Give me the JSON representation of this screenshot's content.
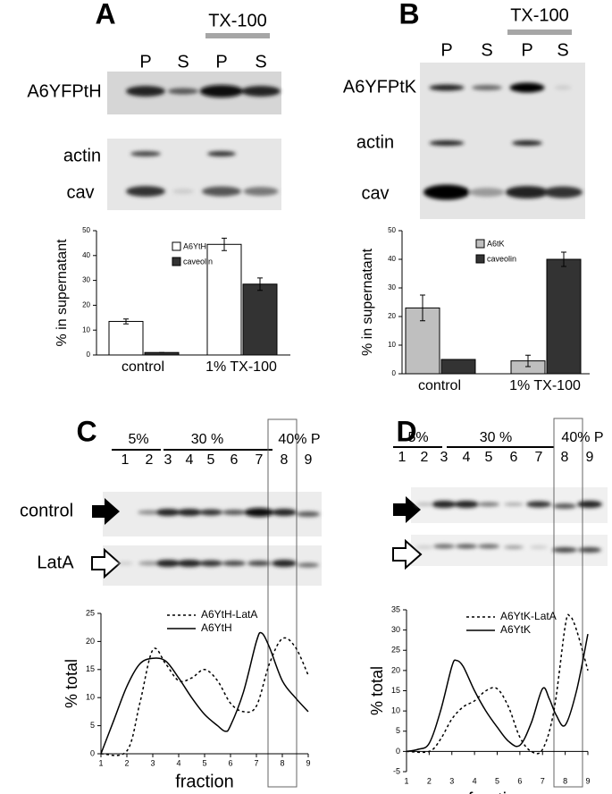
{
  "blots": [
    {
      "label": "A",
      "treatment": "TX-100",
      "lanes": [
        "P",
        "S",
        "P",
        "S"
      ],
      "rows": [
        "A6YFPtH",
        "actin",
        "cav"
      ]
    },
    {
      "label": "B",
      "treatment": "TX-100",
      "lanes": [
        "P",
        "S",
        "P",
        "S"
      ],
      "rows": [
        "A6YFPtK",
        "actin",
        "cav"
      ]
    },
    {
      "label": "C",
      "gradients": [
        "5%",
        "30 %",
        "40% P"
      ],
      "lanes": [
        "1",
        "2",
        "3",
        "4",
        "5",
        "6",
        "7",
        "8",
        "9"
      ],
      "rows": [
        "control",
        "LatA"
      ]
    },
    {
      "label": "D",
      "gradients": [
        "5%",
        "30 %",
        "40% P"
      ],
      "lanes": [
        "1",
        "2",
        "3",
        "4",
        "5",
        "6",
        "7",
        "8",
        "9"
      ]
    }
  ],
  "chart_data": [
    {
      "type": "bar",
      "ylabel": "% in supernatant",
      "categories": [
        "control",
        "1% TX-100"
      ],
      "ylim": [
        0,
        50
      ],
      "yticks": [
        0,
        10,
        20,
        30,
        40,
        50
      ],
      "series": [
        {
          "name": "A6YtH",
          "color": "#ffffff",
          "values": [
            13.5,
            44.5
          ],
          "errors": [
            1,
            2.5
          ]
        },
        {
          "name": "caveolin",
          "color": "#333333",
          "values": [
            1,
            28.5
          ],
          "errors": [
            0,
            2.5
          ]
        }
      ]
    },
    {
      "type": "bar",
      "ylabel": "% in supernatant",
      "categories": [
        "control",
        "1% TX-100"
      ],
      "ylim": [
        0,
        50
      ],
      "yticks": [
        0,
        10,
        20,
        30,
        40,
        50
      ],
      "series": [
        {
          "name": "A6tK",
          "color": "#bfbfbf",
          "values": [
            23,
            4.5
          ],
          "errors": [
            4.5,
            2
          ]
        },
        {
          "name": "caveolin",
          "color": "#333333",
          "values": [
            5,
            40
          ],
          "errors": [
            0,
            2.5
          ]
        }
      ]
    },
    {
      "type": "line",
      "xlabel": "fraction",
      "ylabel": "% total",
      "xlim": [
        1,
        9
      ],
      "xticks": [
        1,
        2,
        3,
        4,
        5,
        6,
        7,
        8,
        9
      ],
      "ylim": [
        0,
        25
      ],
      "yticks": [
        0,
        5,
        10,
        15,
        20,
        25
      ],
      "series": [
        {
          "name": "A6YtH-LatA",
          "color": "#000000",
          "dash": true,
          "x": [
            1,
            2,
            2.5,
            3,
            3.5,
            4,
            4.5,
            5,
            5.5,
            6,
            6.5,
            7,
            7.5,
            8,
            8.5,
            9
          ],
          "values": [
            0,
            0.5,
            9,
            18.5,
            16,
            13,
            13.5,
            15,
            13,
            9,
            7.5,
            8.5,
            16,
            20.5,
            19,
            14
          ]
        },
        {
          "name": "A6YtH",
          "color": "#000000",
          "dash": false,
          "x": [
            1,
            1.5,
            2,
            2.5,
            3,
            3.5,
            4,
            4.5,
            5,
            5.5,
            5.8,
            6,
            6.5,
            7,
            7.2,
            7.5,
            8,
            8.5,
            9
          ],
          "values": [
            0,
            6,
            12,
            16,
            17,
            16.5,
            13.5,
            10,
            7,
            5,
            4,
            5,
            11,
            20,
            21.5,
            19,
            13,
            10,
            7.5
          ]
        }
      ]
    },
    {
      "type": "line",
      "xlabel": "fraction",
      "ylabel": "% total",
      "xlim": [
        1,
        9
      ],
      "xticks": [
        1,
        2,
        3,
        4,
        5,
        6,
        7,
        8,
        9
      ],
      "ylim": [
        -5,
        35
      ],
      "yticks": [
        -5,
        0,
        5,
        10,
        15,
        20,
        25,
        30,
        35
      ],
      "series": [
        {
          "name": "A6YtK-LatA",
          "color": "#000000",
          "dash": true,
          "x": [
            1,
            2,
            2.5,
            3,
            3.5,
            4,
            4.5,
            5,
            5.5,
            6,
            6.5,
            7,
            7.5,
            8,
            8.2,
            8.5,
            9
          ],
          "values": [
            0,
            0,
            3,
            8,
            11,
            12.5,
            15,
            15.5,
            11,
            3.5,
            0,
            0.5,
            10,
            31,
            33.5,
            30,
            20
          ]
        },
        {
          "name": "A6YtK",
          "color": "#000000",
          "dash": false,
          "x": [
            1,
            1.5,
            2,
            2.5,
            3,
            3.2,
            3.5,
            4,
            4.5,
            5,
            5.5,
            6,
            6.5,
            7,
            7.3,
            7.6,
            8,
            8.5,
            9
          ],
          "values": [
            0,
            0.5,
            2,
            10,
            21,
            22.5,
            21,
            15,
            10,
            6,
            2.5,
            1.5,
            7,
            15.5,
            13,
            9,
            6.5,
            15,
            29
          ]
        }
      ]
    }
  ]
}
